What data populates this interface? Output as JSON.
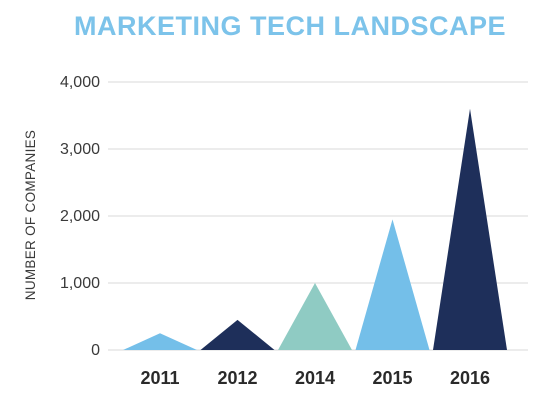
{
  "chart_data": {
    "type": "bar",
    "title": "MARKETING TECH LANDSCAPE",
    "xlabel": "",
    "ylabel": "NUMBER OF COMPANIES",
    "categories": [
      "2011",
      "2012",
      "2014",
      "2015",
      "2016"
    ],
    "values": [
      250,
      450,
      1000,
      1950,
      3600
    ],
    "colors": [
      "#74bfe9",
      "#1e2f5a",
      "#8fcbc3",
      "#74bfe9",
      "#1e2f5a"
    ],
    "ylim": [
      0,
      4000
    ],
    "yticks": [
      0,
      1000,
      2000,
      3000,
      4000
    ],
    "ytick_labels": [
      "0",
      "1,000",
      "2,000",
      "3,000",
      "4,000"
    ],
    "grid": true,
    "mark_shape": "triangle"
  }
}
